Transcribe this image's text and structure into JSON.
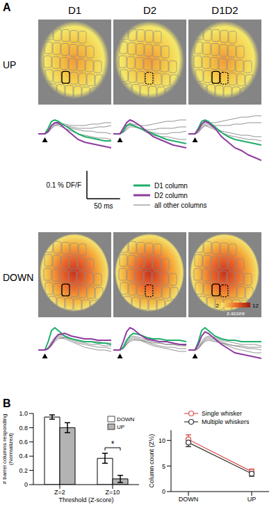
{
  "panel_labels": [
    "A",
    "B"
  ],
  "columns": [
    "D1",
    "D2",
    "D1D2"
  ],
  "rows": [
    "UP",
    "DOWN"
  ],
  "scale_bar": {
    "y_label": "0.1 % DF/F",
    "y_value": 0.1,
    "x_label": "50 ms",
    "x_value": 50
  },
  "legend": [
    {
      "name": "D1 column",
      "color": "#1fae6a"
    },
    {
      "name": "D2 column",
      "color": "#8e3a9e"
    },
    {
      "name": "all other columns",
      "color": "#777777"
    }
  ],
  "color_bar": {
    "range": [
      2,
      12
    ],
    "ticks": [
      2,
      12
    ],
    "label": "z-score"
  },
  "chart_data": [
    {
      "type": "line",
      "tick_labels": false,
      "stimulus": 0,
      "x": [
        -10,
        0,
        5,
        10,
        15,
        20,
        30,
        40,
        50,
        60,
        70,
        80,
        90,
        100
      ],
      "xlim": [
        -10,
        100
      ],
      "ylim": [
        -0.1,
        0.1
      ],
      "series": [
        {
          "name": "D1 column",
          "color": "#1fae6a",
          "values": [
            0,
            0,
            0.02,
            0.045,
            0.05,
            0.045,
            0.03,
            0.015,
            0.0,
            -0.01,
            -0.015,
            -0.02,
            -0.025,
            -0.025
          ]
        },
        {
          "name": "D2 column",
          "color": "#8e3a9e",
          "values": [
            0,
            0,
            0.01,
            0.03,
            0.04,
            0.04,
            0.02,
            0,
            -0.02,
            -0.03,
            -0.035,
            -0.04,
            -0.045,
            -0.05
          ]
        },
        {
          "name": "all other columns",
          "color": "#777777",
          "values": [
            0,
            0,
            0.01,
            0.03,
            0.04,
            0.04,
            0.035,
            0.03,
            0.03,
            0.03,
            0.035,
            0.035,
            0.04,
            0.04
          ]
        },
        {
          "name": "all other columns",
          "color": "#777777",
          "values": [
            0,
            0,
            0.01,
            0.025,
            0.035,
            0.035,
            0.03,
            0.02,
            0.015,
            0.01,
            0.01,
            0.005,
            0.005,
            0.0
          ]
        },
        {
          "name": "all other columns",
          "color": "#777777",
          "values": [
            0,
            0,
            0.005,
            0.02,
            0.03,
            0.03,
            0.02,
            0.01,
            0.0,
            -0.005,
            -0.01,
            -0.015,
            -0.015,
            -0.02
          ]
        },
        {
          "name": "all other columns",
          "color": "#777777",
          "values": [
            0,
            0,
            0.005,
            0.02,
            0.03,
            0.035,
            0.03,
            0.025,
            0.02,
            0.02,
            0.02,
            0.025,
            0.025,
            0.03
          ]
        }
      ]
    },
    {
      "type": "line",
      "tick_labels": false,
      "stimulus": 0,
      "x": [
        -10,
        0,
        5,
        10,
        15,
        20,
        30,
        40,
        50,
        60,
        70,
        80,
        90,
        100
      ],
      "xlim": [
        -10,
        100
      ],
      "ylim": [
        -0.1,
        0.1
      ],
      "series": [
        {
          "name": "D1 column",
          "color": "#1fae6a",
          "values": [
            0,
            0,
            0.01,
            0.03,
            0.035,
            0.03,
            0.02,
            0.01,
            0,
            -0.01,
            -0.02,
            -0.025,
            -0.03,
            -0.035
          ]
        },
        {
          "name": "D2 column",
          "color": "#8e3a9e",
          "values": [
            0,
            0,
            0.02,
            0.04,
            0.05,
            0.045,
            0.03,
            0.01,
            -0.01,
            -0.02,
            -0.03,
            -0.04,
            -0.045,
            -0.05
          ]
        },
        {
          "name": "all other columns",
          "color": "#777777",
          "values": [
            0,
            0,
            0.01,
            0.03,
            0.04,
            0.035,
            0.03,
            0.03,
            0.035,
            0.04,
            0.045,
            0.045,
            0.05,
            0.05
          ]
        },
        {
          "name": "all other columns",
          "color": "#777777",
          "values": [
            0,
            0,
            0.01,
            0.025,
            0.035,
            0.03,
            0.02,
            0.015,
            0.015,
            0.02,
            0.02,
            0.02,
            0.025,
            0.025
          ]
        },
        {
          "name": "all other columns",
          "color": "#777777",
          "values": [
            0,
            0,
            0.005,
            0.02,
            0.03,
            0.03,
            0.02,
            0.005,
            -0.005,
            -0.01,
            -0.01,
            -0.015,
            -0.02,
            -0.02
          ]
        },
        {
          "name": "all other columns",
          "color": "#777777",
          "values": [
            0,
            0,
            0.005,
            0.015,
            0.025,
            0.025,
            0.02,
            0.01,
            0.005,
            0,
            0,
            0.005,
            0.005,
            0.01
          ]
        }
      ]
    },
    {
      "type": "line",
      "tick_labels": false,
      "stimulus": 0,
      "x": [
        -10,
        0,
        5,
        10,
        15,
        20,
        30,
        40,
        50,
        60,
        70,
        80,
        90,
        100
      ],
      "xlim": [
        -10,
        100
      ],
      "ylim": [
        -0.1,
        0.1
      ],
      "series": [
        {
          "name": "D1 column",
          "color": "#1fae6a",
          "values": [
            0,
            0,
            0.02,
            0.045,
            0.05,
            0.045,
            0.025,
            0.005,
            -0.01,
            -0.02,
            -0.025,
            -0.03,
            -0.035,
            -0.04
          ]
        },
        {
          "name": "D2 column",
          "color": "#8e3a9e",
          "values": [
            0,
            0,
            0.015,
            0.035,
            0.045,
            0.04,
            0.02,
            -0.01,
            -0.03,
            -0.05,
            -0.06,
            -0.075,
            -0.085,
            -0.095
          ]
        },
        {
          "name": "all other columns",
          "color": "#777777",
          "values": [
            0,
            0,
            0.01,
            0.03,
            0.04,
            0.04,
            0.04,
            0.045,
            0.05,
            0.055,
            0.06,
            0.06,
            0.065,
            0.065
          ]
        },
        {
          "name": "all other columns",
          "color": "#777777",
          "values": [
            0,
            0,
            0.01,
            0.025,
            0.035,
            0.035,
            0.03,
            0.03,
            0.03,
            0.035,
            0.035,
            0.04,
            0.04,
            0.04
          ]
        },
        {
          "name": "all other columns",
          "color": "#777777",
          "values": [
            0,
            0,
            0.005,
            0.02,
            0.03,
            0.03,
            0.02,
            0.01,
            0.005,
            0,
            -0.005,
            -0.005,
            -0.01,
            -0.01
          ]
        },
        {
          "name": "all other columns",
          "color": "#777777",
          "values": [
            0,
            0,
            0.005,
            0.02,
            0.03,
            0.025,
            0.015,
            0.005,
            -0.005,
            -0.01,
            -0.015,
            -0.02,
            -0.02,
            -0.025
          ]
        }
      ]
    },
    {
      "type": "line",
      "tick_labels": false,
      "stimulus": 0,
      "x": [
        -10,
        0,
        5,
        10,
        15,
        20,
        30,
        40,
        50,
        60,
        70,
        80,
        90,
        100
      ],
      "xlim": [
        -10,
        100
      ],
      "ylim": [
        -0.1,
        0.1
      ],
      "series": [
        {
          "name": "D1 column",
          "color": "#1fae6a",
          "values": [
            0,
            0,
            0.03,
            0.07,
            0.08,
            0.07,
            0.05,
            0.04,
            0.035,
            0.03,
            0.03,
            0.025,
            0.025,
            0.02
          ]
        },
        {
          "name": "D2 column",
          "color": "#8e3a9e",
          "values": [
            0,
            0,
            0.005,
            0.02,
            0.04,
            0.055,
            0.06,
            0.05,
            0.045,
            0.04,
            0.04,
            0.035,
            0.035,
            0.035
          ]
        },
        {
          "name": "all other columns",
          "color": "#777777",
          "values": [
            0,
            0,
            0.01,
            0.03,
            0.045,
            0.055,
            0.05,
            0.04,
            0.03,
            0.025,
            0.02,
            0.02,
            0.015,
            0.015
          ]
        },
        {
          "name": "all other columns",
          "color": "#777777",
          "values": [
            0,
            0,
            0.005,
            0.025,
            0.04,
            0.05,
            0.045,
            0.035,
            0.025,
            0.02,
            0.015,
            0.01,
            0.01,
            0.005
          ]
        },
        {
          "name": "all other columns",
          "color": "#777777",
          "values": [
            0,
            0,
            0.005,
            0.02,
            0.035,
            0.045,
            0.04,
            0.03,
            0.02,
            0.01,
            0.005,
            0,
            0,
            -0.005
          ]
        },
        {
          "name": "all other columns",
          "color": "#777777",
          "values": [
            0,
            0,
            0.005,
            0.015,
            0.03,
            0.04,
            0.045,
            0.04,
            0.035,
            0.03,
            0.03,
            0.03,
            0.025,
            0.025
          ]
        }
      ]
    },
    {
      "type": "line",
      "tick_labels": false,
      "stimulus": 0,
      "x": [
        -10,
        0,
        5,
        10,
        15,
        20,
        30,
        40,
        50,
        60,
        70,
        80,
        90,
        100
      ],
      "xlim": [
        -10,
        100
      ],
      "ylim": [
        -0.1,
        0.1
      ],
      "series": [
        {
          "name": "D1 column",
          "color": "#1fae6a",
          "values": [
            0,
            0,
            0.01,
            0.035,
            0.05,
            0.06,
            0.055,
            0.045,
            0.04,
            0.04,
            0.035,
            0.035,
            0.035,
            0.03
          ]
        },
        {
          "name": "D2 column",
          "color": "#8e3a9e",
          "values": [
            0,
            0,
            0.03,
            0.065,
            0.08,
            0.075,
            0.055,
            0.04,
            0.035,
            0.03,
            0.03,
            0.025,
            0.02,
            0.02
          ]
        },
        {
          "name": "all other columns",
          "color": "#777777",
          "values": [
            0,
            0,
            0.01,
            0.03,
            0.045,
            0.05,
            0.045,
            0.035,
            0.03,
            0.025,
            0.02,
            0.02,
            0.015,
            0.015
          ]
        },
        {
          "name": "all other columns",
          "color": "#777777",
          "values": [
            0,
            0,
            0.005,
            0.025,
            0.04,
            0.045,
            0.04,
            0.03,
            0.02,
            0.015,
            0.01,
            0.01,
            0.005,
            0.005
          ]
        },
        {
          "name": "all other columns",
          "color": "#777777",
          "values": [
            0,
            0,
            0.005,
            0.02,
            0.035,
            0.04,
            0.035,
            0.025,
            0.015,
            0.01,
            0.005,
            0,
            -0.005,
            -0.005
          ]
        },
        {
          "name": "all other columns",
          "color": "#777777",
          "values": [
            0,
            0,
            0.005,
            0.02,
            0.03,
            0.035,
            0.035,
            0.03,
            0.025,
            0.025,
            0.02,
            0.02,
            0.02,
            0.015
          ]
        }
      ]
    },
    {
      "type": "line",
      "tick_labels": false,
      "stimulus": 0,
      "x": [
        -10,
        0,
        5,
        10,
        15,
        20,
        30,
        40,
        50,
        60,
        70,
        80,
        90,
        100
      ],
      "xlim": [
        -10,
        100
      ],
      "ylim": [
        -0.1,
        0.1
      ],
      "series": [
        {
          "name": "D1 column",
          "color": "#1fae6a",
          "values": [
            0,
            0,
            0.03,
            0.07,
            0.08,
            0.07,
            0.05,
            0.04,
            0.035,
            0.035,
            0.03,
            0.03,
            0.03,
            0.03
          ]
        },
        {
          "name": "D2 column",
          "color": "#8e3a9e",
          "values": [
            0,
            0,
            0.02,
            0.05,
            0.065,
            0.06,
            0.04,
            0.02,
            0.005,
            -0.01,
            -0.015,
            -0.02,
            -0.025,
            -0.03
          ]
        },
        {
          "name": "all other columns",
          "color": "#777777",
          "values": [
            0,
            0,
            0.01,
            0.03,
            0.045,
            0.05,
            0.045,
            0.035,
            0.03,
            0.025,
            0.02,
            0.02,
            0.02,
            0.015
          ]
        },
        {
          "name": "all other columns",
          "color": "#777777",
          "values": [
            0,
            0,
            0.005,
            0.025,
            0.04,
            0.045,
            0.04,
            0.03,
            0.02,
            0.015,
            0.01,
            0.005,
            0.005,
            0
          ]
        },
        {
          "name": "all other columns",
          "color": "#777777",
          "values": [
            0,
            0,
            0.005,
            0.02,
            0.035,
            0.04,
            0.035,
            0.025,
            0.015,
            0.005,
            0,
            -0.005,
            -0.01,
            -0.01
          ]
        },
        {
          "name": "all other columns",
          "color": "#777777",
          "values": [
            0,
            0,
            0.005,
            0.02,
            0.03,
            0.035,
            0.03,
            0.025,
            0.02,
            0.015,
            0.015,
            0.01,
            0.01,
            0.01
          ]
        }
      ]
    },
    {
      "type": "bar",
      "categories": [
        "Z=2",
        "Z=10"
      ],
      "series": [
        {
          "name": "DOWN",
          "color": "#ffffff",
          "values": [
            0.95,
            0.37
          ],
          "errors": [
            0.03,
            0.07
          ]
        },
        {
          "name": "UP",
          "color": "#b3b3b3",
          "values": [
            0.8,
            0.08
          ],
          "errors": [
            0.07,
            0.05
          ]
        }
      ],
      "ylim": [
        0,
        1
      ],
      "yticks": [
        0,
        0.2,
        0.4,
        0.6,
        0.8,
        {
          "value": 1,
          "label": "1.0"
        }
      ],
      "y_label": "# barrel columns responding (Normalized)",
      "x_label": "Threshold (Z-score)",
      "annotations": [
        {
          "text": "*",
          "category": "Z=10"
        }
      ],
      "legend": "top right"
    },
    {
      "type": "line",
      "categories": [
        "DOWN",
        "UP"
      ],
      "series": [
        {
          "name": "Single whisker",
          "color": "#d9534f",
          "marker": "open circle",
          "values": [
            10.2,
            3.9
          ],
          "errors": [
            0.9,
            0.5
          ]
        },
        {
          "name": "Multiple whiskers",
          "color": "#333333",
          "marker": "open circle",
          "values": [
            9.6,
            3.5
          ],
          "errors": [
            0.8,
            0.5
          ]
        }
      ],
      "ylim": [
        0,
        12
      ],
      "yticks": [
        0,
        5,
        10
      ],
      "y_label": "Column count (Z½)",
      "legend": "top"
    }
  ]
}
